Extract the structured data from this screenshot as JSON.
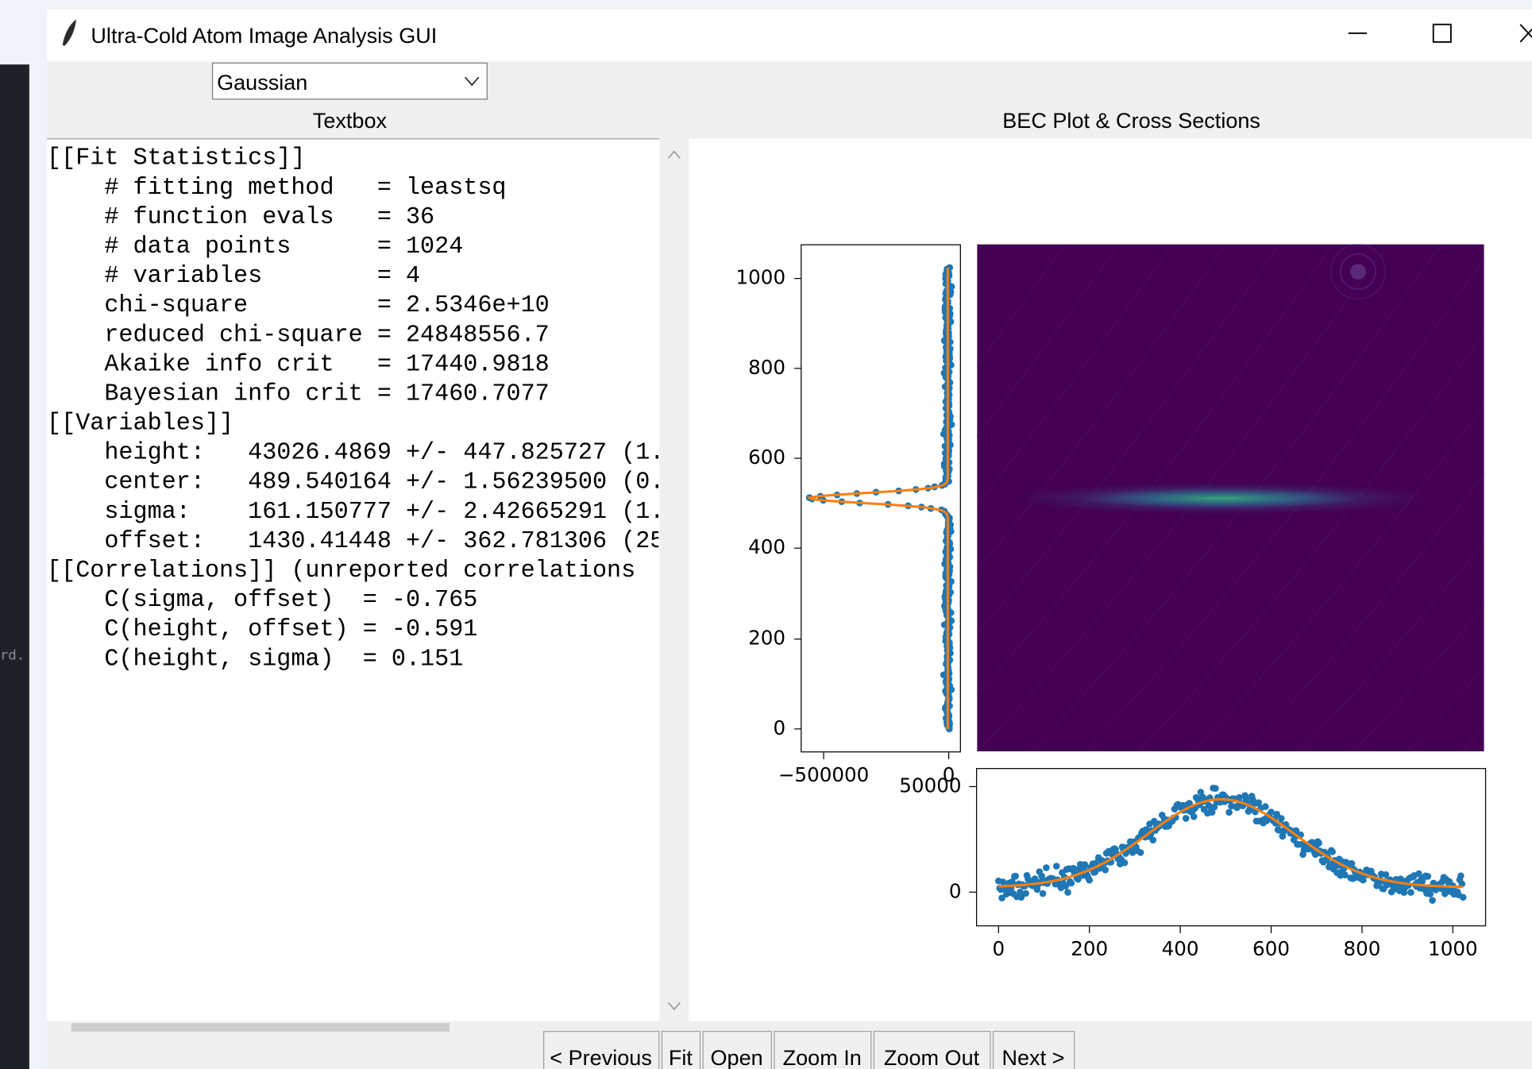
{
  "window": {
    "title": "Ultra-Cold Atom Image Analysis GUI"
  },
  "dropdown": {
    "value": "Gaussian"
  },
  "textbox": {
    "label": "Textbox",
    "lines": [
      "[[Fit Statistics]]",
      "    # fitting method   = leastsq",
      "    # function evals   = 36",
      "    # data points      = 1024",
      "    # variables        = 4",
      "    chi-square         = 2.5346e+10",
      "    reduced chi-square = 24848556.7",
      "    Akaike info crit   = 17440.9818",
      "    Bayesian info crit = 17460.7077",
      "[[Variables]]",
      "    height:   43026.4869 +/- 447.825727 (1.",
      "    center:   489.540164 +/- 1.56239500 (0.",
      "    sigma:    161.150777 +/- 2.42665291 (1.",
      "    offset:   1430.41448 +/- 362.781306 (25",
      "[[Correlations]] (unreported correlations",
      "    C(sigma, offset)  = -0.765",
      "    C(height, offset) = -0.591",
      "    C(height, sigma)  = 0.151"
    ]
  },
  "plot_panel": {
    "title": "BEC Plot & Cross Sections",
    "side_plot": {
      "yticks": [
        1000,
        800,
        600,
        400,
        200,
        0
      ],
      "xticks": [
        "−500000",
        0
      ]
    },
    "bottom_plot": {
      "yticks": [
        50000,
        0
      ],
      "xticks": [
        0,
        200,
        400,
        600,
        800,
        1000
      ]
    }
  },
  "buttons": [
    "< Previous",
    "Fit",
    "Open",
    "Zoom In",
    "Zoom Out",
    "Next >"
  ],
  "background": {
    "fragment": "rd."
  }
}
